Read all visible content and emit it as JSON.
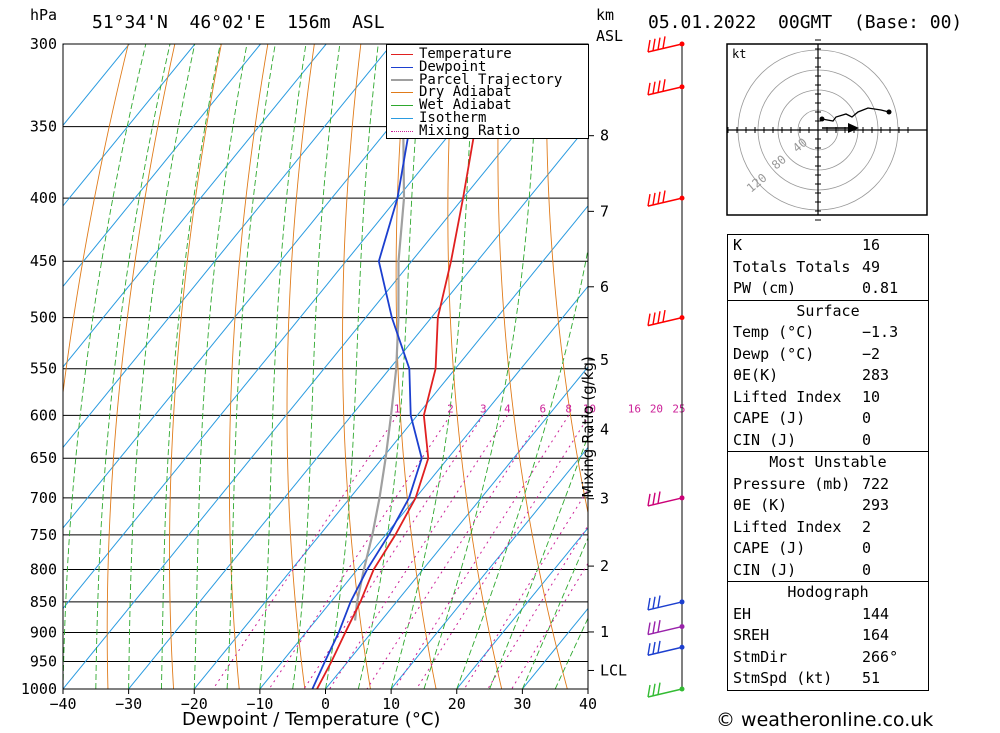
{
  "header": {
    "location": "51°34'N  46°02'E  156m  ASL",
    "datetime": "05.01.2022  00GMT  (Base: 00)",
    "pressure_unit": "hPa",
    "height_unit": "km",
    "height_unit2": "ASL"
  },
  "chart_data": {
    "type": "skew-t",
    "xlabel": "Dewpoint / Temperature (°C)",
    "ylabel_right": "Mixing Ratio (g/kg)",
    "x_ticks": [
      "−40",
      "−30",
      "−20",
      "−10",
      "0",
      "10",
      "20",
      "30",
      "40"
    ],
    "p_ticks": [
      "300",
      "350",
      "400",
      "450",
      "500",
      "550",
      "600",
      "650",
      "700",
      "750",
      "800",
      "850",
      "900",
      "950",
      "1000"
    ],
    "km_ticks": [
      "8",
      "7",
      "6",
      "5",
      "4",
      "3",
      "2",
      "1",
      "LCL"
    ],
    "mixing_ratio_labels": [
      "1",
      "2",
      "3",
      "4",
      "6",
      "8",
      "10",
      "16",
      "20",
      "25"
    ],
    "legend": [
      {
        "label": "Temperature",
        "color": "#e02020"
      },
      {
        "label": "Dewpoint",
        "color": "#1c3fcf"
      },
      {
        "label": "Parcel Trajectory",
        "color": "#a0a0a0"
      },
      {
        "label": "Dry Adiabat",
        "color": "#e07b1a"
      },
      {
        "label": "Wet Adiabat",
        "color": "#2ea82e"
      },
      {
        "label": "Isotherm",
        "color": "#2a9be0"
      },
      {
        "label": "Mixing Ratio",
        "color": "#cc2299"
      }
    ],
    "temperature": [
      {
        "p": 1000,
        "t": -1.3
      },
      {
        "p": 950,
        "t": -2.5
      },
      {
        "p": 900,
        "t": -4
      },
      {
        "p": 850,
        "t": -5.5
      },
      {
        "p": 800,
        "t": -7.5
      },
      {
        "p": 750,
        "t": -8.5
      },
      {
        "p": 700,
        "t": -10
      },
      {
        "p": 650,
        "t": -13
      },
      {
        "p": 600,
        "t": -19
      },
      {
        "p": 550,
        "t": -23
      },
      {
        "p": 500,
        "t": -29
      },
      {
        "p": 450,
        "t": -34
      },
      {
        "p": 400,
        "t": -40
      },
      {
        "p": 350,
        "t": -47
      },
      {
        "p": 300,
        "t": -55
      }
    ],
    "dewpoint": [
      {
        "p": 1000,
        "t": -2
      },
      {
        "p": 950,
        "t": -3.5
      },
      {
        "p": 900,
        "t": -5
      },
      {
        "p": 850,
        "t": -7
      },
      {
        "p": 800,
        "t": -8.5
      },
      {
        "p": 750,
        "t": -9.5
      },
      {
        "p": 700,
        "t": -11
      },
      {
        "p": 650,
        "t": -14
      },
      {
        "p": 600,
        "t": -21
      },
      {
        "p": 550,
        "t": -27
      },
      {
        "p": 500,
        "t": -36
      },
      {
        "p": 450,
        "t": -45
      },
      {
        "p": 400,
        "t": -50
      },
      {
        "p": 350,
        "t": -57
      },
      {
        "p": 300,
        "t": -65
      }
    ],
    "parcel": [
      {
        "p": 880,
        "t": -4
      },
      {
        "p": 850,
        "t": -6
      },
      {
        "p": 800,
        "t": -9
      },
      {
        "p": 750,
        "t": -12
      },
      {
        "p": 700,
        "t": -15.5
      },
      {
        "p": 650,
        "t": -19.5
      },
      {
        "p": 600,
        "t": -24
      },
      {
        "p": 550,
        "t": -29
      },
      {
        "p": 500,
        "t": -35
      },
      {
        "p": 450,
        "t": -42
      },
      {
        "p": 400,
        "t": -49
      },
      {
        "p": 350,
        "t": -58
      },
      {
        "p": 300,
        "t": -67
      }
    ]
  },
  "hodograph": {
    "unit": "kt",
    "ring_labels": [
      "40",
      "80",
      "120"
    ]
  },
  "indices": [
    {
      "label": "K",
      "value": "16"
    },
    {
      "label": "Totals Totals",
      "value": "49"
    },
    {
      "label": "PW (cm)",
      "value": "0.81"
    }
  ],
  "surface": {
    "title": "Surface",
    "rows": [
      {
        "label": "Temp (°C)",
        "value": "−1.3"
      },
      {
        "label": "Dewp (°C)",
        "value": "−2"
      },
      {
        "label": "θE(K)",
        "value": "283"
      },
      {
        "label": "Lifted Index",
        "value": "10"
      },
      {
        "label": "CAPE (J)",
        "value": "0"
      },
      {
        "label": "CIN (J)",
        "value": "0"
      }
    ]
  },
  "most_unstable": {
    "title": "Most Unstable",
    "rows": [
      {
        "label": "Pressure (mb)",
        "value": "722"
      },
      {
        "label": "θE (K)",
        "value": "293"
      },
      {
        "label": "Lifted Index",
        "value": "2"
      },
      {
        "label": "CAPE (J)",
        "value": "0"
      },
      {
        "label": "CIN (J)",
        "value": "0"
      }
    ]
  },
  "hodograph_table": {
    "title": "Hodograph",
    "rows": [
      {
        "label": "EH",
        "value": "144"
      },
      {
        "label": "SREH",
        "value": "164"
      },
      {
        "label": "StmDir",
        "value": "266°"
      },
      {
        "label": "StmSpd (kt)",
        "value": "51"
      }
    ]
  },
  "footer": "© weatheronline.co.uk"
}
